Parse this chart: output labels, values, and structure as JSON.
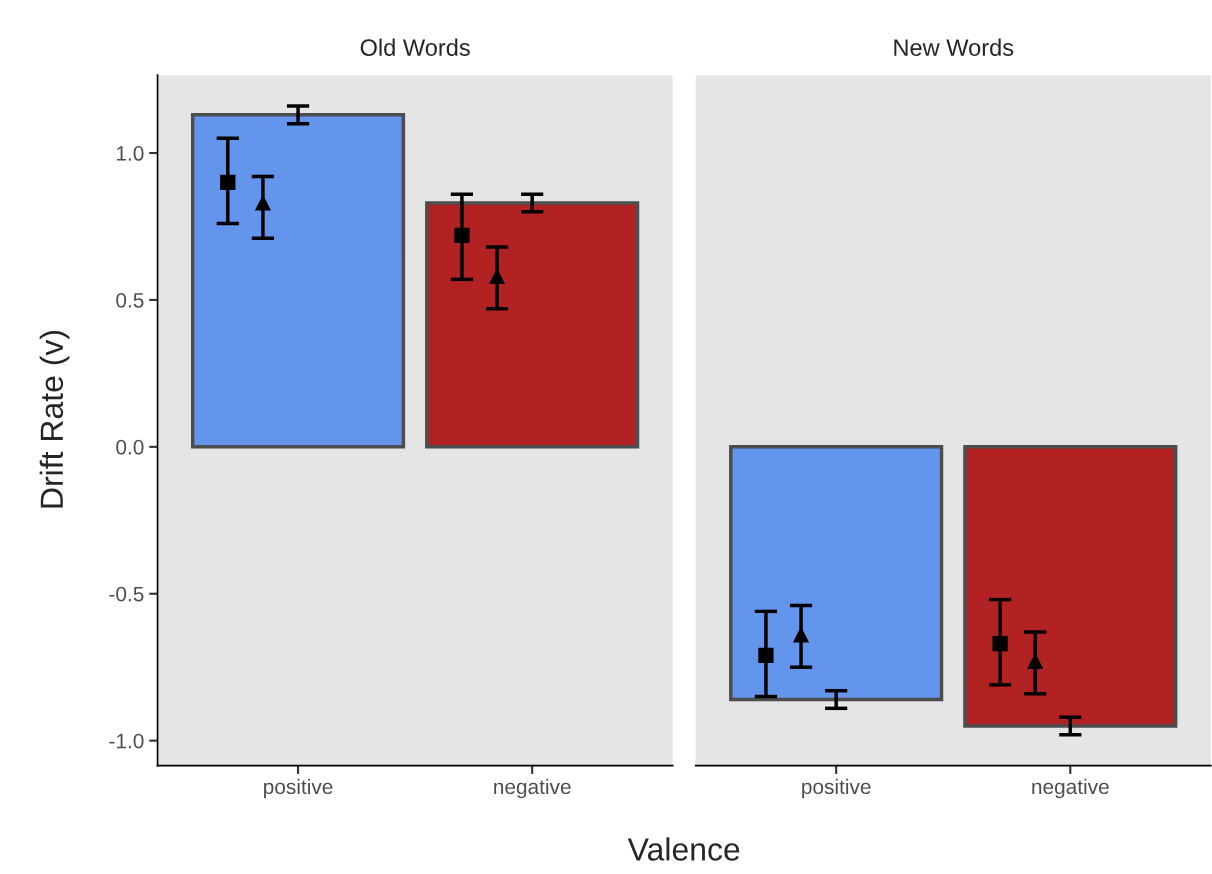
{
  "chart_data": [
    {
      "type": "bar",
      "title": "Old Words",
      "xlabel": "Valence",
      "ylabel": "Drift Rate (v)",
      "categories": [
        "positive",
        "negative"
      ],
      "ylim": [
        -1.085,
        1.265
      ],
      "yticks": [
        {
          "value": 1.0,
          "label": "1.0"
        },
        0.5,
        {
          "value": 0.0,
          "label": "0.0"
        },
        {
          "value": -0.5,
          "label": "-0.5"
        },
        {
          "value": -1.0,
          "label": "-1.0"
        }
      ],
      "grid": false,
      "series": [
        {
          "colors": [
            "#6495ed",
            "#b22222"
          ],
          "values": [
            1.13,
            0.83
          ],
          "errors": [
            [
              1.1,
              1.16
            ],
            [
              0.8,
              0.86
            ]
          ]
        },
        {
          "type": "scatter",
          "marker": "square",
          "color": "#000000",
          "x": [
            "positive",
            "negative"
          ],
          "values": [
            0.9,
            0.72
          ],
          "errors": [
            [
              0.76,
              1.05
            ],
            [
              0.57,
              0.86
            ]
          ]
        },
        {
          "type": "scatter",
          "marker": "triangle",
          "color": "#000000",
          "x": [
            "positive",
            "negative"
          ],
          "values": [
            0.83,
            0.58
          ],
          "errors": [
            [
              0.71,
              0.92
            ],
            [
              0.47,
              0.68
            ]
          ]
        }
      ]
    },
    {
      "type": "bar",
      "title": "New Words",
      "categories": [
        "positive",
        "negative"
      ],
      "ylim": [
        -1.085,
        1.265
      ],
      "tick_labels": "x",
      "grid": false,
      "series": [
        {
          "colors": [
            "#6495ed",
            "#b22222"
          ],
          "values": [
            -0.86,
            -0.95
          ],
          "errors": [
            [
              -0.89,
              -0.83
            ],
            [
              -0.98,
              -0.92
            ]
          ]
        },
        {
          "type": "scatter",
          "marker": "square",
          "color": "#000000",
          "x": [
            "positive",
            "negative"
          ],
          "values": [
            -0.71,
            -0.67
          ],
          "errors": [
            [
              -0.85,
              -0.56
            ],
            [
              -0.81,
              -0.52
            ]
          ]
        },
        {
          "type": "scatter",
          "marker": "triangle",
          "color": "#000000",
          "x": [
            "positive",
            "negative"
          ],
          "values": [
            -0.64,
            -0.73
          ],
          "errors": [
            [
              -0.75,
              -0.54
            ],
            [
              -0.84,
              -0.63
            ]
          ]
        }
      ]
    }
  ]
}
